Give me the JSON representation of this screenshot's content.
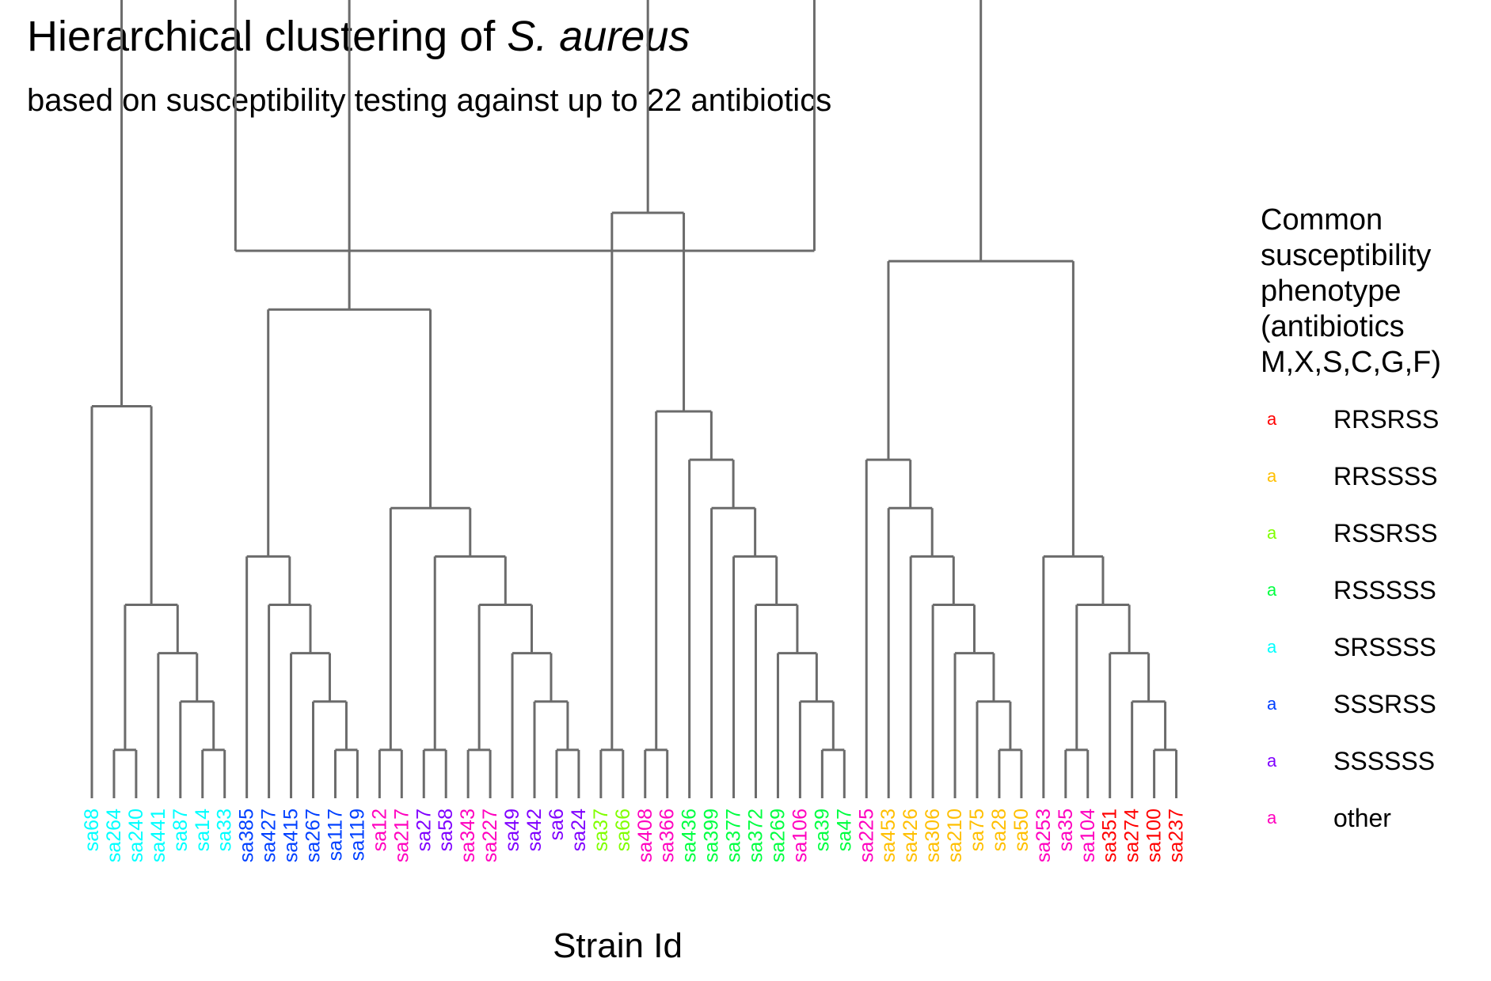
{
  "title": {
    "prefix": "Hierarchical clustering of ",
    "italic": "S. aureus"
  },
  "subtitle": "based on susceptibility testing against up to 22 antibiotics",
  "chart_data": {
    "type": "dendrogram",
    "xlabel": "Strain Id",
    "ylabel": "",
    "grid": false,
    "legend_position": "right",
    "legend": {
      "title_lines": [
        "Common",
        "susceptibility",
        "phenotype",
        "(antibiotics",
        "M,X,S,C,G,F)"
      ],
      "key_glyph": "a",
      "items": [
        {
          "label": "RRSRSS",
          "color": "#FF0000"
        },
        {
          "label": "RRSSSS",
          "color": "#FFBF00"
        },
        {
          "label": "RSSRSS",
          "color": "#80FF00"
        },
        {
          "label": "RSSSSS",
          "color": "#00FF40"
        },
        {
          "label": "SRSSSS",
          "color": "#00FFFF"
        },
        {
          "label": "SSSRSS",
          "color": "#0040FF"
        },
        {
          "label": "SSSSSS",
          "color": "#8000FF"
        },
        {
          "label": "other",
          "color": "#FF00BF"
        }
      ]
    },
    "leaves": [
      {
        "label": "sa68",
        "group": "SRSSSS"
      },
      {
        "label": "sa264",
        "group": "SRSSSS"
      },
      {
        "label": "sa240",
        "group": "SRSSSS"
      },
      {
        "label": "sa441",
        "group": "SRSSSS"
      },
      {
        "label": "sa87",
        "group": "SRSSSS"
      },
      {
        "label": "sa14",
        "group": "SRSSSS"
      },
      {
        "label": "sa33",
        "group": "SRSSSS"
      },
      {
        "label": "sa385",
        "group": "SSSRSS"
      },
      {
        "label": "sa427",
        "group": "SSSRSS"
      },
      {
        "label": "sa415",
        "group": "SSSRSS"
      },
      {
        "label": "sa267",
        "group": "SSSRSS"
      },
      {
        "label": "sa117",
        "group": "SSSRSS"
      },
      {
        "label": "sa119",
        "group": "SSSRSS"
      },
      {
        "label": "sa12",
        "group": "other"
      },
      {
        "label": "sa217",
        "group": "other"
      },
      {
        "label": "sa27",
        "group": "SSSSSS"
      },
      {
        "label": "sa58",
        "group": "SSSSSS"
      },
      {
        "label": "sa343",
        "group": "other"
      },
      {
        "label": "sa227",
        "group": "other"
      },
      {
        "label": "sa49",
        "group": "SSSSSS"
      },
      {
        "label": "sa42",
        "group": "SSSSSS"
      },
      {
        "label": "sa6",
        "group": "SSSSSS"
      },
      {
        "label": "sa24",
        "group": "SSSSSS"
      },
      {
        "label": "sa37",
        "group": "RSSRSS"
      },
      {
        "label": "sa66",
        "group": "RSSRSS"
      },
      {
        "label": "sa408",
        "group": "other"
      },
      {
        "label": "sa366",
        "group": "other"
      },
      {
        "label": "sa436",
        "group": "RSSSSS"
      },
      {
        "label": "sa399",
        "group": "RSSSSS"
      },
      {
        "label": "sa377",
        "group": "RSSSSS"
      },
      {
        "label": "sa372",
        "group": "RSSSSS"
      },
      {
        "label": "sa269",
        "group": "RSSSSS"
      },
      {
        "label": "sa106",
        "group": "other"
      },
      {
        "label": "sa39",
        "group": "RSSSSS"
      },
      {
        "label": "sa47",
        "group": "RSSSSS"
      },
      {
        "label": "sa225",
        "group": "other"
      },
      {
        "label": "sa453",
        "group": "RRSSSS"
      },
      {
        "label": "sa426",
        "group": "RRSSSS"
      },
      {
        "label": "sa306",
        "group": "RRSSSS"
      },
      {
        "label": "sa210",
        "group": "RRSSSS"
      },
      {
        "label": "sa75",
        "group": "RRSSSS"
      },
      {
        "label": "sa28",
        "group": "RRSSSS"
      },
      {
        "label": "sa50",
        "group": "RRSSSS"
      },
      {
        "label": "sa253",
        "group": "other"
      },
      {
        "label": "sa35",
        "group": "other"
      },
      {
        "label": "sa104",
        "group": "other"
      },
      {
        "label": "sa351",
        "group": "RRSRSS"
      },
      {
        "label": "sa274",
        "group": "RRSRSS"
      },
      {
        "label": "sa100",
        "group": "RRSRSS"
      },
      {
        "label": "sa237",
        "group": "RRSRSS"
      }
    ],
    "tree": [
      [
        [
          [
            0,
            [
              [
                1,
                2
              ],
              [
                3,
                [
                  4,
                  [
                    5,
                    6
                  ]
                ]
              ]
            ]
          ],
          [
            [
              [
                7,
                [
                  8,
                  [
                    9,
                    [
                      10,
                      [
                        11,
                        12
                      ]
                    ]
                  ]
                ]
              ]
            ],
            [
              [
                13,
                14
              ],
              [
                [
                  15,
                  16
                ],
                [
                  [
                    17,
                    18
                  ],
                  [
                    19,
                    [
                      20,
                      [
                        21,
                        22
                      ]
                    ]
                  ]
                ]
              ]
            ]
          ]
        ]
      ],
      [
        [
          [
            23,
            24
          ],
          [
            [
              25,
              26
            ],
            [
              27,
              [
                28,
                [
                  29,
                  [
                    30,
                    [
                      31,
                      [
                        32,
                        [
                          33,
                          34
                        ]
                      ]
                    ]
                  ]
                ]
              ]
            ]
          ]
        ],
        [
          [
            35,
            [
              36,
              [
                37,
                [
                  38,
                  [
                    39,
                    [
                      40,
                      [
                        41,
                        42
                      ]
                    ]
                  ]
                ]
              ]
            ]
          ],
          [
            43,
            [
              [
                44,
                45
              ],
              [
                46,
                [
                  47,
                  [
                    48,
                    49
                  ]
                ]
              ]
            ]
          ]
        ]
      ]
    ],
    "merge_heights": {
      "root": 1.0,
      "left_main": 0.5156,
      "right_main": 0.5469,
      "note": "heights read from relative vertical position; leaf level = 0"
    }
  }
}
